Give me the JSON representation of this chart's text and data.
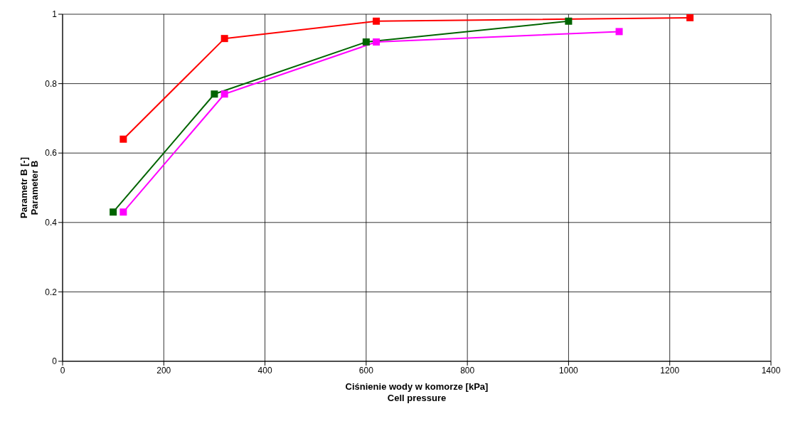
{
  "chart_data": {
    "type": "line",
    "xlabel": "Ciśnienie wody w komorze  [kPa]\nCell pressure",
    "ylabel": "Parametr B  [-]\nParameter B",
    "series": [
      {
        "color": "#ff0000",
        "x": [
          120,
          320,
          620,
          1240
        ],
        "values": [
          0.64,
          0.93,
          0.98,
          0.99
        ]
      },
      {
        "color": "#006400",
        "x": [
          100,
          300,
          600,
          1000
        ],
        "values": [
          0.43,
          0.77,
          0.92,
          0.98
        ]
      },
      {
        "color": "#ff00ff",
        "x": [
          120,
          320,
          620,
          1100
        ],
        "values": [
          0.43,
          0.77,
          0.92,
          0.95
        ]
      }
    ],
    "xlim": [
      0,
      1400
    ],
    "xticks": [
      0,
      200,
      400,
      600,
      800,
      1000,
      1200,
      1400
    ],
    "ylim": [
      0,
      1
    ],
    "yticks": [
      0,
      0.2,
      0.4,
      0.6,
      0.8,
      1
    ],
    "grid": true,
    "marker": "square",
    "line_style": "solid"
  }
}
